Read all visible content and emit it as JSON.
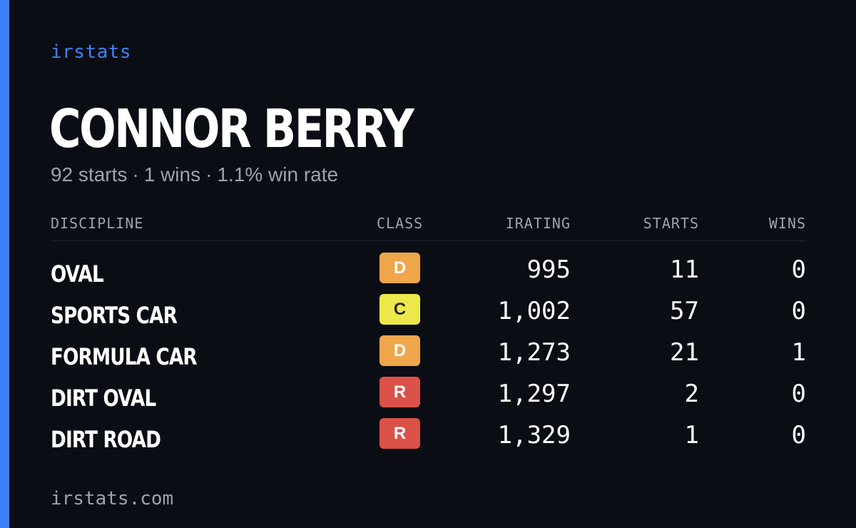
{
  "brand": "irstats",
  "driver": {
    "name": "CONNOR BERRY"
  },
  "summary": {
    "starts": "92 starts",
    "wins": "1 wins",
    "win_rate": "1.1% win rate",
    "separator": "·"
  },
  "table": {
    "headers": {
      "discipline": "DISCIPLINE",
      "class": "CLASS",
      "irating": "IRATING",
      "starts": "STARTS",
      "wins": "WINS"
    },
    "rows": [
      {
        "discipline": "OVAL",
        "class": "D",
        "class_bg": "#f0a64a",
        "class_fg": "#ffffff",
        "irating": "995",
        "starts": "11",
        "wins": "0"
      },
      {
        "discipline": "SPORTS CAR",
        "class": "C",
        "class_bg": "#ede84a",
        "class_fg": "#2a2a10",
        "irating": "1,002",
        "starts": "57",
        "wins": "0"
      },
      {
        "discipline": "FORMULA CAR",
        "class": "D",
        "class_bg": "#f0a64a",
        "class_fg": "#ffffff",
        "irating": "1,273",
        "starts": "21",
        "wins": "1"
      },
      {
        "discipline": "DIRT OVAL",
        "class": "R",
        "class_bg": "#dc5148",
        "class_fg": "#ffffff",
        "irating": "1,297",
        "starts": "2",
        "wins": "0"
      },
      {
        "discipline": "DIRT ROAD",
        "class": "R",
        "class_bg": "#dc5148",
        "class_fg": "#ffffff",
        "irating": "1,329",
        "starts": "1",
        "wins": "0"
      }
    ]
  },
  "footer": {
    "domain": "irstats.com"
  },
  "colors": {
    "accent": "#3b82f6",
    "background": "#0a0d14",
    "muted_text": "#9ca3af"
  }
}
